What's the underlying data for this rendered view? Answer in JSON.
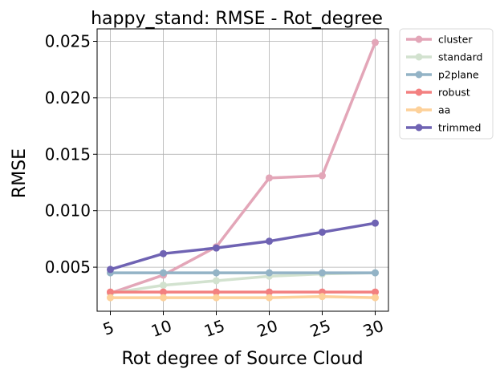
{
  "chart_data": {
    "type": "line",
    "title": "happy_stand: RMSE - Rot_degree",
    "xlabel": "Rot degree of Source Cloud",
    "ylabel": "RMSE",
    "x": [
      5,
      10,
      15,
      20,
      25,
      30
    ],
    "xticks": [
      "5",
      "10",
      "15",
      "20",
      "25",
      "30"
    ],
    "yticks": [
      "0.005",
      "0.010",
      "0.015",
      "0.020",
      "0.025"
    ],
    "ytick_values": [
      0.005,
      0.01,
      0.015,
      0.02,
      0.025
    ],
    "xlim": [
      3.75,
      31.25
    ],
    "ylim": [
      0.0011,
      0.0261
    ],
    "grid": true,
    "legend_position": "outside top-right",
    "series": [
      {
        "name": "cluster",
        "color": "#e3a6b8",
        "values": [
          0.0027,
          0.0043,
          0.0068,
          0.0129,
          0.0131,
          0.0249
        ]
      },
      {
        "name": "standard",
        "color": "#d2e2cf",
        "values": [
          0.0027,
          0.0034,
          0.0038,
          0.0042,
          0.0044,
          0.0045
        ]
      },
      {
        "name": "p2plane",
        "color": "#93b3c6",
        "values": [
          0.0045,
          0.0045,
          0.0045,
          0.0045,
          0.0045,
          0.0045
        ]
      },
      {
        "name": "robust",
        "color": "#f38080",
        "values": [
          0.0028,
          0.0028,
          0.0028,
          0.0028,
          0.0028,
          0.0028
        ]
      },
      {
        "name": "aa",
        "color": "#fdd19a",
        "values": [
          0.0023,
          0.0023,
          0.0023,
          0.0023,
          0.0024,
          0.0023
        ]
      },
      {
        "name": "trimmed",
        "color": "#6f63b3",
        "values": [
          0.0048,
          0.0062,
          0.0067,
          0.0073,
          0.0081,
          0.0089
        ]
      }
    ]
  }
}
